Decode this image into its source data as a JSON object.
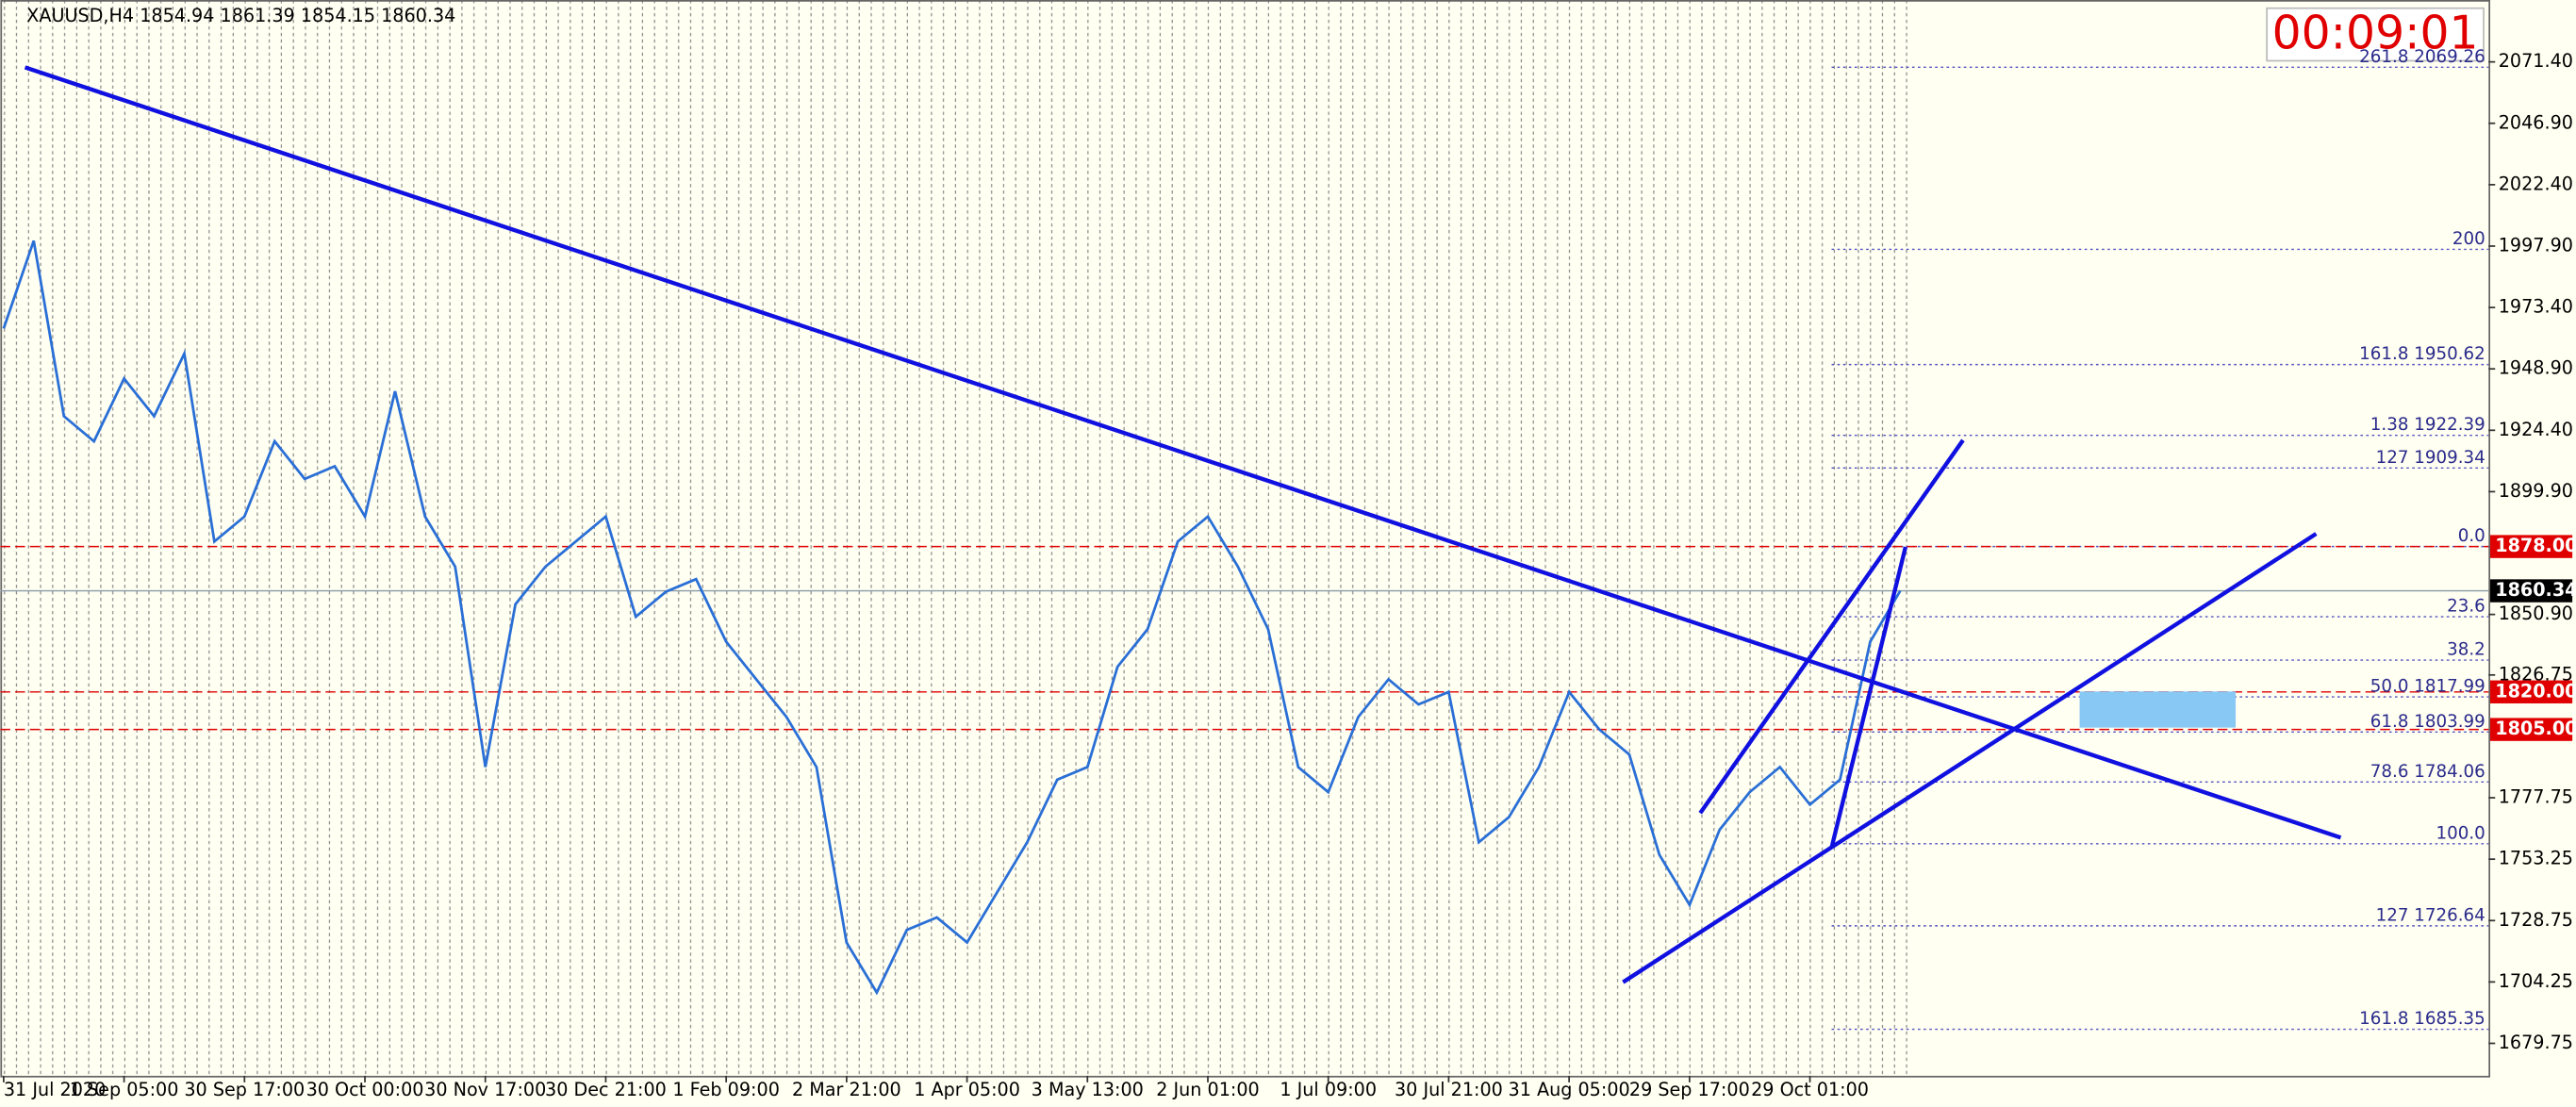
{
  "chart_data": {
    "type": "line",
    "header": "XAUUSD,H4  1854.94 1861.39 1854.15 1860.34",
    "timer": "00:09:01",
    "color": "#2a6fd6",
    "categories": [
      "31 Jul 2020",
      null,
      null,
      null,
      "1 Sep 05:00",
      null,
      null,
      null,
      "30 Sep 17:00",
      null,
      null,
      null,
      "30 Oct 00:00",
      null,
      null,
      null,
      "30 Nov 17:00",
      null,
      null,
      null,
      "30 Dec 21:00",
      null,
      null,
      null,
      "1 Feb 09:00",
      null,
      null,
      null,
      "2 Mar 21:00",
      null,
      null,
      null,
      "1 Apr 05:00",
      null,
      null,
      null,
      "3 May 13:00",
      null,
      null,
      null,
      "2 Jun 01:00",
      null,
      null,
      null,
      "1 Jul 09:00",
      null,
      null,
      null,
      "30 Jul 21:00",
      null,
      null,
      null,
      "31 Aug 05:00",
      null,
      null,
      null,
      "29 Sep 17:00",
      null,
      null,
      null,
      "29 Oct 01:00",
      null,
      null,
      null
    ],
    "values": [
      1965,
      2000,
      1930,
      1920,
      1945,
      1930,
      1955,
      1880,
      1890,
      1920,
      1905,
      1910,
      1890,
      1940,
      1890,
      1870,
      1790,
      1855,
      1870,
      1880,
      1890,
      1850,
      1860,
      1865,
      1840,
      1825,
      1810,
      1790,
      1720,
      1700,
      1725,
      1730,
      1720,
      1740,
      1760,
      1785,
      1790,
      1830,
      1845,
      1880,
      1890,
      1870,
      1845,
      1790,
      1780,
      1810,
      1825,
      1815,
      1820,
      1760,
      1770,
      1790,
      1820,
      1805,
      1795,
      1755,
      1735,
      1765,
      1780,
      1790,
      1775,
      1785,
      1840,
      1860.34
    ],
    "ylim": [
      1666.8,
      2096.1
    ],
    "yticks": [
      {
        "value": 2071.4,
        "label": "2071.40"
      },
      {
        "value": 2046.9,
        "label": "2046.90"
      },
      {
        "value": 2022.4,
        "label": "2022.40"
      },
      {
        "value": 1997.9,
        "label": "1997.90"
      },
      {
        "value": 1973.4,
        "label": "1973.40"
      },
      {
        "value": 1948.9,
        "label": "1948.90"
      },
      {
        "value": 1924.4,
        "label": "1924.40"
      },
      {
        "value": 1899.9,
        "label": "1899.90"
      },
      {
        "value": 1850.9,
        "label": "1850.90"
      },
      1826.75,
      1777.75,
      1753.25,
      1728.75,
      1704.25,
      1679.75
    ],
    "fib_levels": [
      {
        "label": "261.8  2069.26",
        "value": 2069.26
      },
      {
        "label": "200",
        "value": 1996.6
      },
      {
        "label": "161.8  1950.62",
        "value": 1950.62
      },
      {
        "label": "1.38  1922.39",
        "value": 1922.39
      },
      {
        "label": "127  1909.34",
        "value": 1909.34
      },
      {
        "label": "0.0",
        "value": 1878
      },
      {
        "label": "23.6",
        "value": 1850
      },
      {
        "label": "38.2",
        "value": 1832.7
      },
      {
        "label": "50.0  1817.99",
        "value": 1817.99
      },
      {
        "label": "61.8  1803.99",
        "value": 1803.99
      },
      {
        "label": "78.6  1784.06",
        "value": 1784.06
      },
      {
        "label": "100.0",
        "value": 1759.4
      },
      {
        "label": "127  1726.64",
        "value": 1726.64
      },
      {
        "label": "161.8  1685.35",
        "value": 1685.35
      }
    ],
    "price_lines": [
      {
        "label": "1878.00",
        "value": 1878,
        "color": "#e00000"
      },
      {
        "label": "1860.34",
        "value": 1860.34,
        "color": "#000000"
      },
      {
        "label": "1820.00",
        "value": 1820,
        "color": "#e00000"
      },
      {
        "label": "1805.00",
        "value": 1805,
        "color": "#e00000"
      }
    ]
  }
}
